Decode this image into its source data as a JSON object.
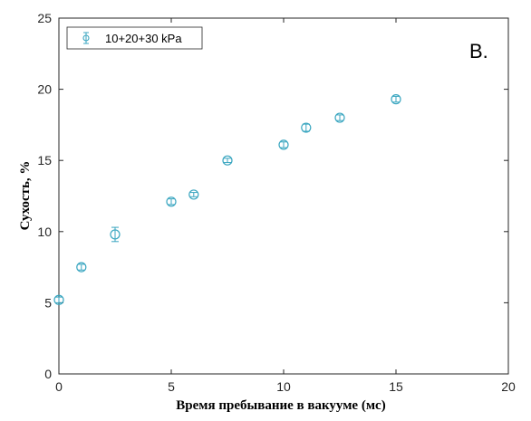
{
  "chart_data": {
    "type": "scatter",
    "panel_label": "B.",
    "xlabel": "Время пребывание в вакууме (мс)",
    "ylabel": "Сухость, %",
    "xlim": [
      0,
      20
    ],
    "ylim": [
      0,
      25
    ],
    "xticks": [
      0,
      5,
      10,
      15,
      20
    ],
    "yticks": [
      0,
      5,
      10,
      15,
      20,
      25
    ],
    "grid": false,
    "legend_position": "top-left",
    "marker_color": "#3aa6c0",
    "series": [
      {
        "name": "10+20+30 kPa",
        "points": [
          {
            "x": 0,
            "y": 5.2,
            "err": 0.2
          },
          {
            "x": 1,
            "y": 7.5,
            "err": 0.2
          },
          {
            "x": 2.5,
            "y": 9.8,
            "err": 0.5
          },
          {
            "x": 5,
            "y": 12.1,
            "err": 0.2
          },
          {
            "x": 6,
            "y": 12.6,
            "err": 0.15
          },
          {
            "x": 7.5,
            "y": 15.0,
            "err": 0.15
          },
          {
            "x": 10,
            "y": 16.1,
            "err": 0.2
          },
          {
            "x": 11,
            "y": 17.3,
            "err": 0.25
          },
          {
            "x": 12.5,
            "y": 18.0,
            "err": 0.2
          },
          {
            "x": 15,
            "y": 19.3,
            "err": 0.2
          }
        ]
      }
    ]
  }
}
